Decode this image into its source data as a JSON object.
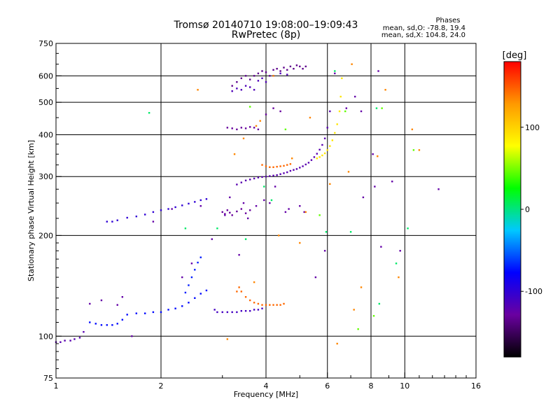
{
  "chart_data": {
    "type": "scatter",
    "title": "Tromsø 20140710 19:08:00–19:09:43",
    "subtitle": "RwPretec (8p)",
    "xlabel": "Frequency [MHz]",
    "ylabel": "Stationary phase Virtual Height [km]",
    "x_scale": "log2",
    "y_scale": "log",
    "xlim": [
      1,
      16
    ],
    "ylim": [
      75,
      750
    ],
    "x_ticks": [
      1,
      2,
      4,
      6,
      8,
      10,
      16
    ],
    "x_tick_labels": [
      "1",
      "2",
      "4",
      "6",
      "8",
      "10",
      "16"
    ],
    "y_ticks": [
      75,
      100,
      200,
      300,
      400,
      500,
      600,
      750
    ],
    "y_tick_labels": [
      "75",
      "100",
      "200",
      "300",
      "400",
      "500",
      "600",
      "750"
    ],
    "grid": true,
    "legend": {
      "title": "Phases",
      "lines": [
        "mean, sd,O: -78.8, 19.4",
        "mean, sd,X: 104.8, 24.0"
      ],
      "placement": "top-right"
    },
    "colorbar": {
      "label": "[deg]",
      "range": [
        -180,
        180
      ],
      "ticks": [
        100,
        0,
        -100
      ],
      "tick_labels": [
        "100",
        "0",
        "-100"
      ],
      "colormap": [
        "#000000",
        "#6a00a0",
        "#0000ff",
        "#00c8ff",
        "#00ff00",
        "#ffff00",
        "#ff9900",
        "#ff0000"
      ]
    },
    "series": [
      {
        "phase": -120,
        "x": [
          1.0,
          1.03,
          1.06,
          1.1,
          1.13,
          1.17,
          1.2
        ],
        "y": [
          96,
          96,
          97,
          97,
          98,
          99,
          103
        ]
      },
      {
        "phase": -75,
        "x": [
          1.25,
          1.3,
          1.35,
          1.4,
          1.45,
          1.5,
          1.55,
          1.6,
          1.7,
          1.8,
          1.9,
          2.0,
          2.1,
          2.2,
          2.3,
          2.4,
          2.5,
          2.6,
          2.7
        ],
        "y": [
          110,
          109,
          108,
          108,
          108,
          109,
          112,
          116,
          117,
          117,
          118,
          118,
          120,
          121,
          123,
          126,
          130,
          134,
          137
        ]
      },
      {
        "phase": -70,
        "x": [
          2.35,
          2.4,
          2.45,
          2.5,
          2.55,
          2.6
        ],
        "y": [
          135,
          142,
          150,
          158,
          166,
          172
        ]
      },
      {
        "phase": -110,
        "x": [
          2.85,
          2.9,
          3.0,
          3.1,
          3.2,
          3.3,
          3.4,
          3.5,
          3.6,
          3.7,
          3.8,
          3.9
        ],
        "y": [
          120,
          118,
          118,
          118,
          118,
          118,
          119,
          119,
          119,
          120,
          120,
          121
        ]
      },
      {
        "phase": 145,
        "x": [
          3.3,
          3.35,
          3.4,
          3.5,
          3.6,
          3.7,
          3.8,
          3.9,
          4.0,
          4.1,
          4.2,
          4.3,
          4.4,
          4.5
        ],
        "y": [
          136,
          140,
          136,
          131,
          128,
          126,
          125,
          124,
          124,
          124,
          124,
          124,
          124,
          125
        ]
      },
      {
        "phase": -100,
        "x": [
          1.4,
          1.45,
          1.5,
          1.6,
          1.7,
          1.8,
          1.9,
          2.0,
          2.1,
          2.2,
          2.3,
          2.4,
          2.5,
          2.6,
          2.7
        ],
        "y": [
          220,
          220,
          222,
          226,
          228,
          231,
          235,
          238,
          240,
          243,
          246,
          249,
          252,
          255,
          257
        ]
      },
      {
        "phase": -130,
        "x": [
          3.0,
          3.05,
          3.1,
          3.15,
          3.2,
          3.3,
          3.4,
          3.5,
          3.6
        ],
        "y": [
          235,
          232,
          238,
          234,
          230,
          236,
          240,
          233,
          238
        ]
      },
      {
        "phase": -120,
        "x": [
          3.3,
          3.4,
          3.5,
          3.6,
          3.7,
          3.8,
          3.9,
          4.0,
          4.1,
          4.2,
          4.3,
          4.4,
          4.5,
          4.6,
          4.7,
          4.8,
          4.9,
          5.0,
          5.1,
          5.2,
          5.3,
          5.4,
          5.5,
          5.6,
          5.7,
          5.8,
          5.9,
          6.0,
          6.1
        ],
        "y": [
          284,
          288,
          292,
          294,
          296,
          298,
          299,
          300,
          301,
          302,
          303,
          305,
          307,
          309,
          312,
          314,
          316,
          319,
          322,
          326,
          330,
          336,
          343,
          351,
          361,
          373,
          390,
          420,
          470
        ]
      },
      {
        "phase": 145,
        "x": [
          3.9,
          4.0,
          4.1,
          4.2,
          4.3,
          4.4,
          4.5,
          4.6,
          4.7
        ],
        "y": [
          325,
          322,
          320,
          320,
          321,
          322,
          323,
          325,
          327
        ]
      },
      {
        "phase": 90,
        "x": [
          5.6,
          5.7,
          5.8,
          5.9,
          6.0,
          6.1,
          6.2,
          6.3,
          6.4,
          6.5,
          6.55,
          6.6
        ],
        "y": [
          340,
          343,
          347,
          352,
          360,
          370,
          385,
          405,
          430,
          470,
          520,
          590
        ]
      },
      {
        "phase": -135,
        "x": [
          3.2,
          3.3,
          3.4,
          3.5,
          3.6,
          3.7,
          3.8,
          3.9,
          4.0,
          4.1,
          4.2,
          4.3,
          4.4,
          4.5,
          4.6,
          4.7,
          4.8,
          4.9,
          5.0,
          5.1,
          5.2
        ],
        "y": [
          560,
          575,
          590,
          600,
          585,
          600,
          610,
          620,
          615,
          600,
          625,
          630,
          620,
          635,
          625,
          640,
          630,
          645,
          640,
          630,
          640
        ]
      },
      {
        "phase": -115,
        "x": [
          3.2,
          3.3,
          3.4,
          3.5,
          3.6,
          3.7,
          3.8,
          3.9,
          4.0,
          4.2,
          4.4,
          4.6
        ],
        "y": [
          540,
          550,
          545,
          560,
          555,
          545,
          580,
          590,
          575,
          600,
          610,
          605
        ]
      },
      {
        "phase": -130,
        "x": [
          3.1,
          3.2,
          3.3,
          3.4,
          3.5,
          3.6,
          3.7,
          3.8,
          4.0,
          4.2,
          4.4
        ],
        "y": [
          420,
          418,
          415,
          420,
          418,
          422,
          420,
          415,
          460,
          480,
          470
        ]
      },
      {
        "phase": -125,
        "x": [
          1.25,
          1.35,
          1.5,
          1.55,
          1.65,
          1.9,
          2.3,
          2.45,
          2.8,
          3.05,
          3.35,
          3.55,
          3.95,
          4.25,
          4.65,
          5.0,
          5.15,
          5.55,
          5.9,
          6.3,
          6.8,
          7.2,
          7.5,
          8.1,
          8.4,
          8.55,
          9.2,
          9.7,
          12.5,
          3.15,
          3.45,
          3.75,
          4.1,
          4.55,
          2.15,
          2.6,
          8.2,
          7.6
        ],
        "y": [
          125,
          128,
          124,
          131,
          100,
          220,
          150,
          165,
          195,
          230,
          175,
          225,
          255,
          280,
          240,
          245,
          235,
          150,
          180,
          610,
          480,
          520,
          470,
          350,
          620,
          185,
          290,
          180,
          275,
          260,
          250,
          245,
          250,
          235,
          240,
          245,
          280,
          260
        ]
      },
      {
        "phase": 135,
        "x": [
          2.55,
          3.1,
          3.45,
          4.35,
          4.75,
          5.2,
          5.35,
          6.1,
          6.9,
          7.05,
          7.15,
          7.5,
          8.8,
          10.5,
          11.0,
          3.85,
          3.25,
          3.7,
          3.75,
          5.0,
          8.35,
          9.6,
          4.2,
          6.4
        ],
        "y": [
          545,
          98,
          390,
          200,
          340,
          235,
          450,
          285,
          310,
          650,
          120,
          140,
          545,
          415,
          360,
          440,
          350,
          145,
          425,
          190,
          345,
          150,
          600,
          95
        ]
      },
      {
        "phase": 5,
        "x": [
          1.85,
          2.35,
          2.9,
          3.5,
          3.95,
          4.15,
          5.95,
          6.3,
          7.0,
          8.3,
          8.45,
          9.45,
          10.2
        ],
        "y": [
          465,
          210,
          210,
          195,
          280,
          255,
          205,
          620,
          205,
          480,
          125,
          165,
          210
        ]
      },
      {
        "phase": 45,
        "x": [
          4.55,
          6.75,
          7.35,
          8.15,
          10.6,
          3.6,
          5.7,
          8.6
        ],
        "y": [
          415,
          470,
          105,
          115,
          360,
          485,
          230,
          480
        ]
      }
    ]
  }
}
